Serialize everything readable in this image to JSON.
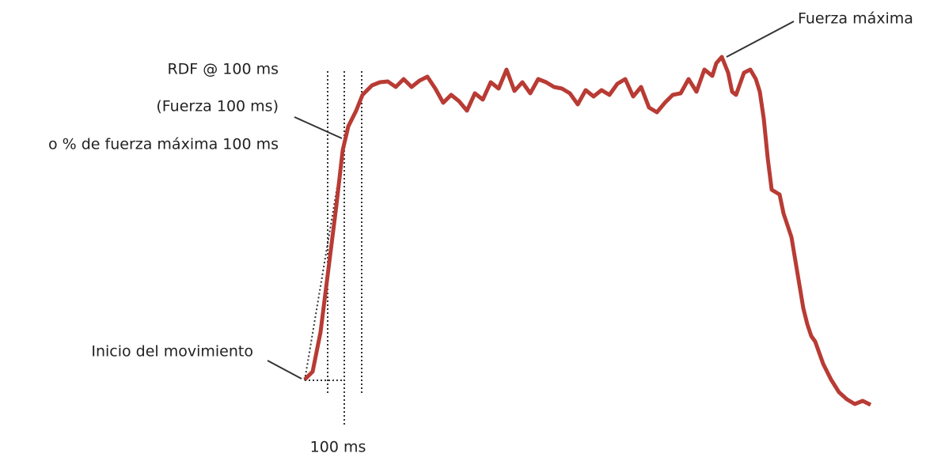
{
  "labels": {
    "peak_force": "Fuerza máxima",
    "rfd_line1": "RDF @ 100 ms",
    "rfd_line2": "(Fuerza 100 ms)",
    "rfd_line3": "o % de fuerza máxima 100 ms",
    "movement_onset": "Inicio del movimiento",
    "time_window": "100 ms"
  }
}
